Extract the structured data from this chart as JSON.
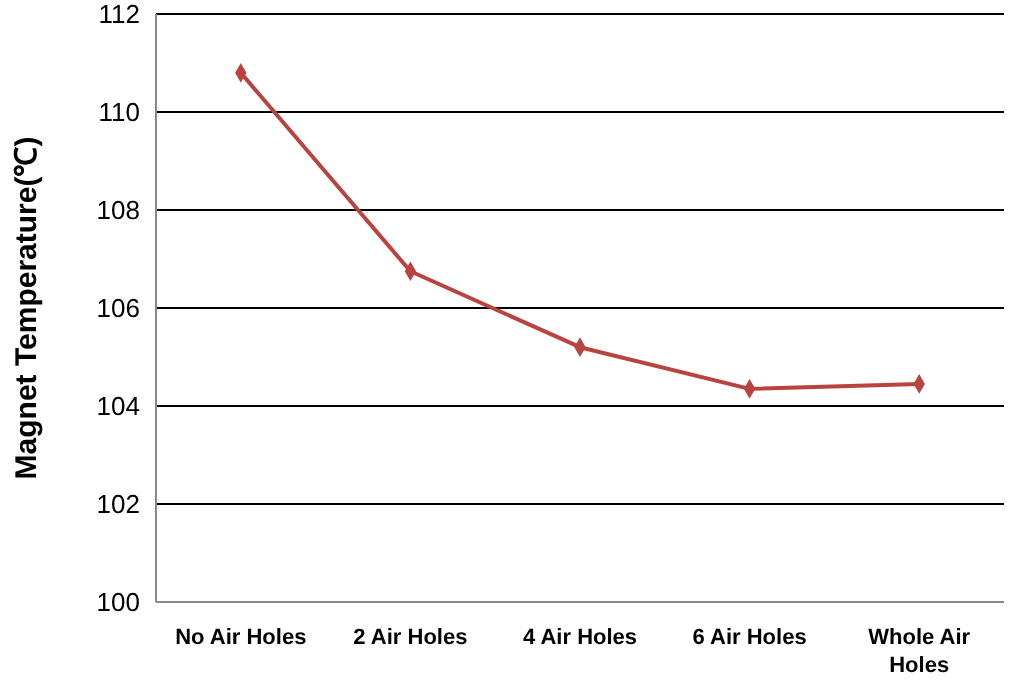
{
  "chart_data": {
    "type": "line",
    "ylabel": "Magnet Temperature(℃)",
    "categories": [
      "No Air Holes",
      "2 Air Holes",
      "4 Air Holes",
      "6 Air Holes",
      "Whole Air Holes"
    ],
    "series": [
      {
        "color": "#b9433f",
        "values": [
          110.8,
          106.75,
          105.2,
          104.35,
          104.45
        ]
      }
    ],
    "ylim": [
      100,
      112
    ],
    "yticks": [
      100,
      102,
      104,
      106,
      108,
      110,
      112
    ],
    "grid": "y",
    "marker": "diamond",
    "line_style": "solid"
  }
}
